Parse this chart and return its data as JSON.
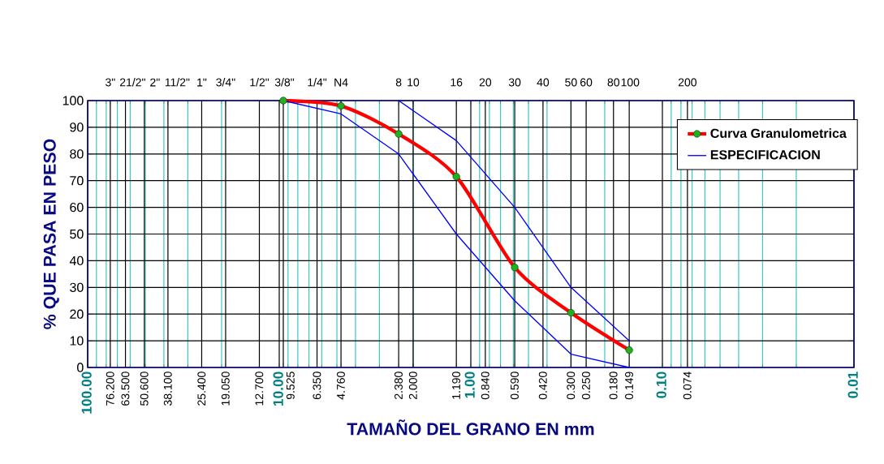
{
  "chart_data": {
    "type": "line",
    "xlabel": "TAMAÑO DEL GRANO EN mm",
    "ylabel": "% QUE PASA EN PESO",
    "log": "x",
    "xlim": [
      100,
      0.01
    ],
    "xticks": [
      {
        "value": 100,
        "label": "100.00"
      },
      {
        "value": 76.2,
        "label": "76.200"
      },
      {
        "value": 63.5,
        "label": "63.500"
      },
      {
        "value": 50.6,
        "label": "50.600"
      },
      {
        "value": 38.1,
        "label": "38.100"
      },
      {
        "value": 25.4,
        "label": "25.400"
      },
      {
        "value": 19.05,
        "label": "19.050"
      },
      {
        "value": 12.7,
        "label": "12.700"
      },
      {
        "value": 10,
        "label": "10.00"
      },
      {
        "value": 9.525,
        "label": "9.525"
      },
      {
        "value": 6.35,
        "label": "6.350"
      },
      {
        "value": 4.76,
        "label": "4.760"
      },
      {
        "value": 2.38,
        "label": "2.380"
      },
      {
        "value": 2,
        "label": "2.000"
      },
      {
        "value": 1.19,
        "label": "1.190"
      },
      {
        "value": 1,
        "label": "1.00"
      },
      {
        "value": 0.84,
        "label": "0.840"
      },
      {
        "value": 0.59,
        "label": "0.590"
      },
      {
        "value": 0.42,
        "label": "0.420"
      },
      {
        "value": 0.3,
        "label": "0.300"
      },
      {
        "value": 0.25,
        "label": "0.250"
      },
      {
        "value": 0.18,
        "label": "0.180"
      },
      {
        "value": 0.149,
        "label": "0.149"
      },
      {
        "value": 0.1,
        "label": "0.10"
      },
      {
        "value": 0.074,
        "label": "0.074"
      },
      {
        "value": 0.01,
        "label": "0.01"
      }
    ],
    "annotations": [
      "3\"",
      "21/2\"",
      "2\"",
      "11/2\"",
      "1\"",
      "3/4\"",
      "1/2\"",
      "3/8\"",
      "1/4\"",
      "N4",
      "8",
      "10",
      "16",
      "20",
      "30",
      "40",
      "50",
      "60",
      "80",
      "100",
      "200"
    ],
    "ylim": [
      0,
      100
    ],
    "yticks": [
      0,
      10,
      20,
      30,
      40,
      50,
      60,
      70,
      80,
      90,
      100
    ],
    "grid": true,
    "legend": "top right",
    "series": [
      {
        "name": "Curva Granulometrica",
        "color": "#ff0000",
        "marker": "circle",
        "x": [
          9.525,
          4.76,
          2.38,
          1.19,
          0.59,
          0.3,
          0.149
        ],
        "values": [
          100,
          98,
          87.5,
          71.5,
          37.5,
          20.5,
          6.5
        ]
      },
      {
        "name": "ESPECIFICACION",
        "color": "#0000ff",
        "marker": "none",
        "x": [
          9.525,
          4.76,
          2.38,
          1.19,
          0.59,
          0.3,
          0.149
        ],
        "values": [
          100,
          95,
          80,
          50,
          25,
          5,
          0
        ]
      },
      {
        "color": "#0000ff",
        "marker": "none",
        "x": [
          2.38,
          1.19,
          0.59,
          0.3,
          0.149
        ],
        "values": [
          100,
          85,
          60,
          30,
          10
        ]
      }
    ]
  }
}
